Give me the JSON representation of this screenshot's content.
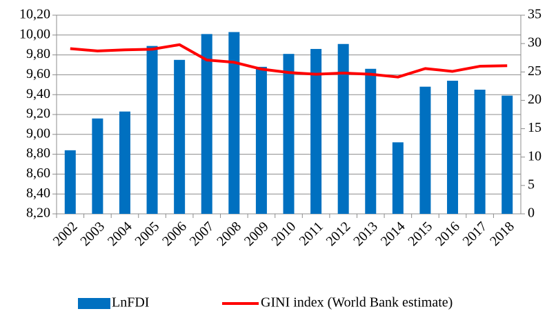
{
  "chart_data": {
    "type": "bar",
    "categories": [
      "2002",
      "2003",
      "2004",
      "2005",
      "2006",
      "2007",
      "2008",
      "2009",
      "2010",
      "2011",
      "2012",
      "2013",
      "2014",
      "2015",
      "2016",
      "2017",
      "2018"
    ],
    "series": [
      {
        "name": "LnFDI",
        "type": "bar",
        "color": "#0070c0",
        "values": [
          8.84,
          9.16,
          9.23,
          9.89,
          9.75,
          10.01,
          10.03,
          9.68,
          9.81,
          9.86,
          9.91,
          9.66,
          8.92,
          9.48,
          9.54,
          9.45,
          9.39
        ]
      },
      {
        "name": "GINI index (World Bank estimate)",
        "type": "line",
        "axis": "y2",
        "color": "#ff0000",
        "values": [
          29.1,
          28.7,
          28.9,
          29.0,
          29.8,
          27.1,
          26.7,
          25.5,
          24.9,
          24.6,
          24.8,
          24.6,
          24.1,
          25.6,
          25.1,
          26.0,
          26.1
        ]
      }
    ],
    "ylim": [
      8.2,
      10.2
    ],
    "yticks": [
      {
        "value": 8.2,
        "label": "8,20"
      },
      {
        "value": 8.4,
        "label": "8,40"
      },
      {
        "value": 8.6,
        "label": "8,60"
      },
      {
        "value": 8.8,
        "label": "8,80"
      },
      {
        "value": 9.0,
        "label": "9,00"
      },
      {
        "value": 9.2,
        "label": "9,20"
      },
      {
        "value": 9.4,
        "label": "9,40"
      },
      {
        "value": 9.6,
        "label": "9,60"
      },
      {
        "value": 9.8,
        "label": "9,80"
      },
      {
        "value": 10.0,
        "label": "10,00"
      },
      {
        "value": 10.2,
        "label": "10,20"
      }
    ],
    "y2lim": [
      0,
      35
    ],
    "y2ticks": [
      0,
      5,
      10,
      15,
      20,
      25,
      30,
      35
    ],
    "grid": true
  }
}
